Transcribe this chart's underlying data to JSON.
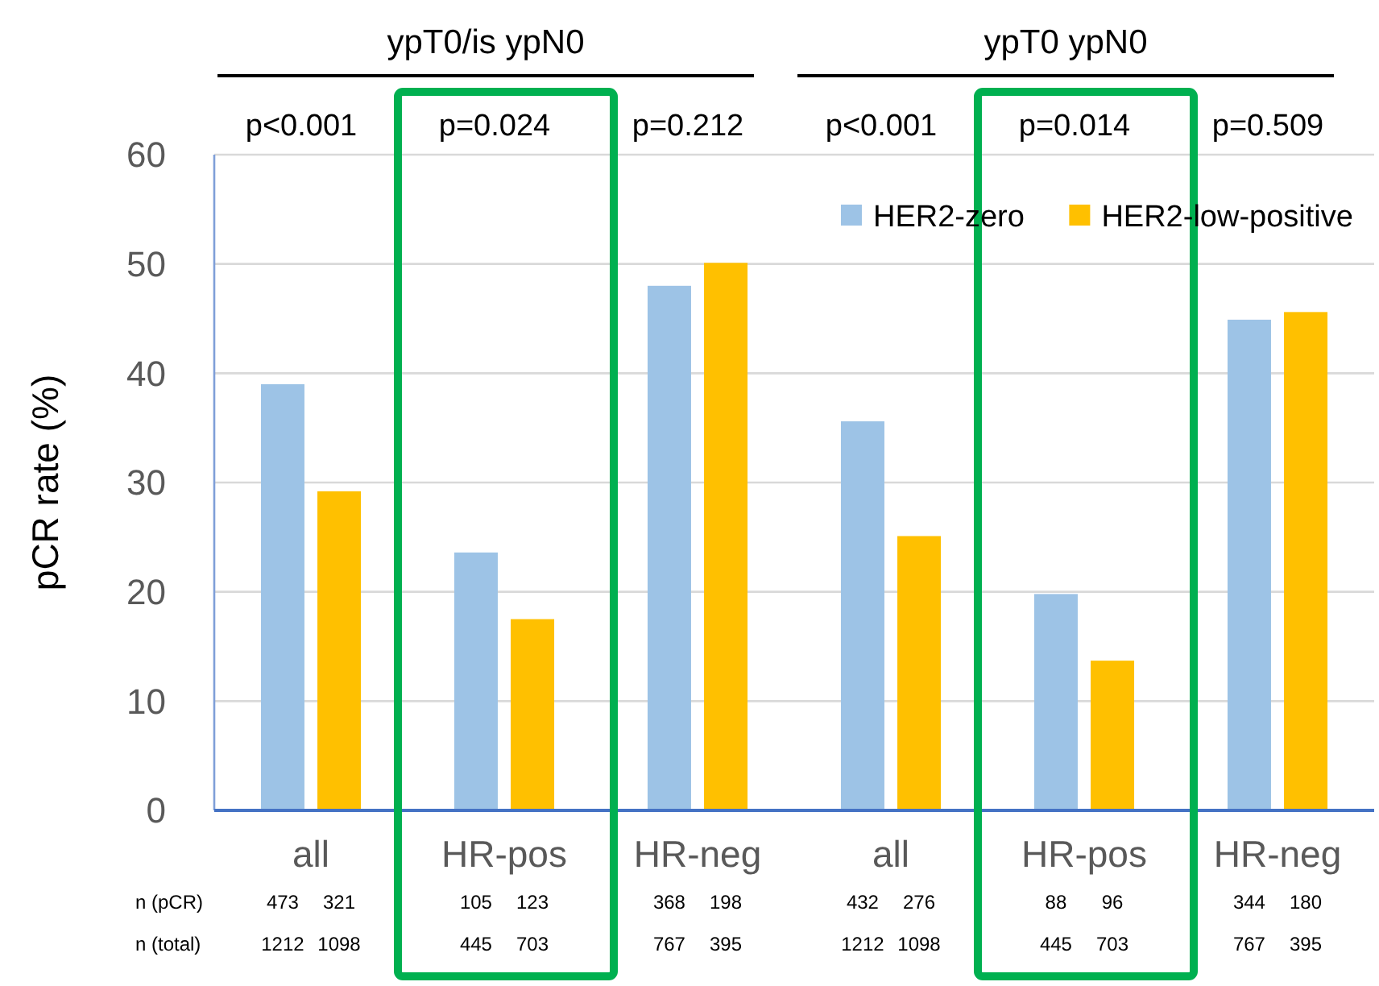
{
  "chart_data": {
    "type": "bar",
    "categories": [
      "all",
      "HR-pos",
      "HR-neg",
      "all",
      "HR-pos",
      "HR-neg"
    ],
    "series": [
      {
        "name": "HER2-zero",
        "color": "#9dc3e6",
        "values": [
          39,
          23.6,
          48,
          35.6,
          19.8,
          44.9
        ]
      },
      {
        "name": "HER2-low-positive",
        "color": "#ffc000",
        "values": [
          29.2,
          17.5,
          50.1,
          25.1,
          13.7,
          45.6
        ]
      }
    ],
    "ylabel": "pCR rate (%)",
    "ylim": [
      0,
      60
    ],
    "yticks": [
      0,
      10,
      20,
      30,
      40,
      50,
      60
    ],
    "grid": "y",
    "legend": "top right",
    "annotations": [
      "ypT0/is ypN0",
      "ypT0 ypN0",
      "p<0.001",
      "p=0.024",
      "p=0.212",
      "p<0.001",
      "p=0.014",
      "p=0.509",
      "n (pCR)",
      "n (total)",
      "473",
      "321",
      "105",
      "123",
      "368",
      "198",
      "432",
      "276",
      "88",
      "96",
      "344",
      "180",
      "1212",
      "1098",
      "445",
      "703",
      "767",
      "395",
      "1212",
      "1098",
      "445",
      "703",
      "767",
      "395"
    ]
  }
}
